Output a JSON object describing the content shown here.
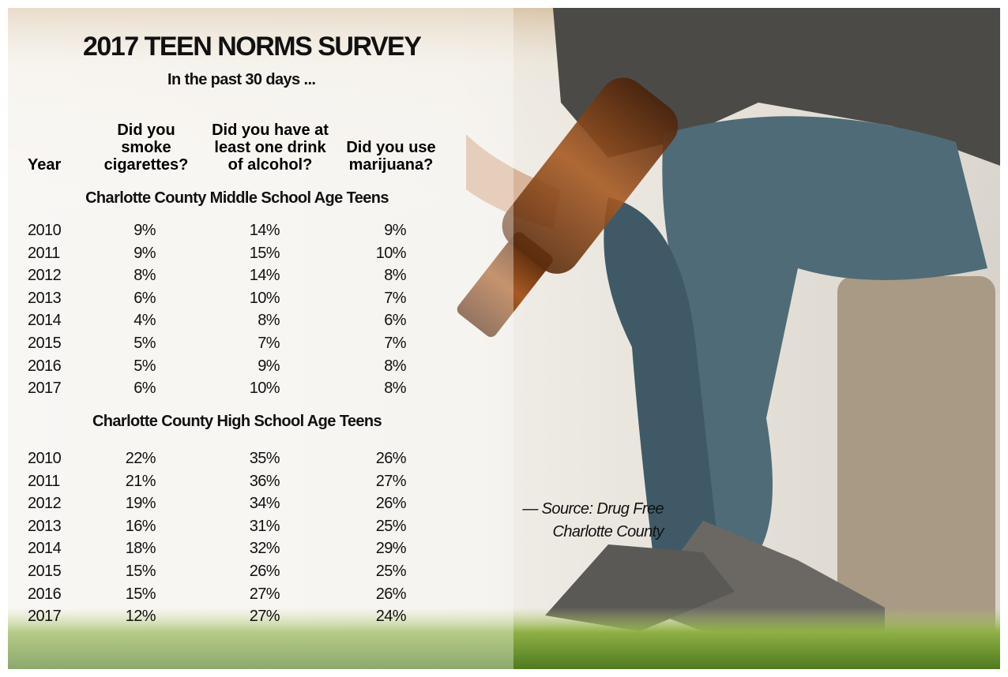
{
  "header": {
    "title": "2017 TEEN NORMS SURVEY",
    "subtitle": "In the past 30 days ..."
  },
  "table": {
    "columns": [
      "Year",
      "Did you smoke cigarettes?",
      "Did you have at least one drink of alcohol?",
      "Did you use marijuana?"
    ],
    "sections": [
      {
        "heading": "Charlotte County Middle School Age Teens",
        "rows": [
          [
            "2010",
            "9%",
            "14%",
            "9%"
          ],
          [
            "2011",
            "9%",
            "15%",
            "10%"
          ],
          [
            "2012",
            "8%",
            "14%",
            "8%"
          ],
          [
            "2013",
            "6%",
            "10%",
            "7%"
          ],
          [
            "2014",
            "4%",
            "8%",
            "6%"
          ],
          [
            "2015",
            "5%",
            "7%",
            "7%"
          ],
          [
            "2016",
            "5%",
            "9%",
            "8%"
          ],
          [
            "2017",
            "6%",
            "10%",
            "8%"
          ]
        ]
      },
      {
        "heading": "Charlotte County High School Age Teens",
        "rows": [
          [
            "2010",
            "22%",
            "35%",
            "26%"
          ],
          [
            "2011",
            "21%",
            "36%",
            "27%"
          ],
          [
            "2012",
            "19%",
            "34%",
            "26%"
          ],
          [
            "2013",
            "16%",
            "31%",
            "25%"
          ],
          [
            "2014",
            "18%",
            "32%",
            "29%"
          ],
          [
            "2015",
            "15%",
            "26%",
            "25%"
          ],
          [
            "2016",
            "15%",
            "27%",
            "26%"
          ],
          [
            "2017",
            "12%",
            "27%",
            "24%"
          ]
        ]
      }
    ]
  },
  "source": {
    "line1": "— Source: Drug Free",
    "line2": "Charlotte County"
  }
}
